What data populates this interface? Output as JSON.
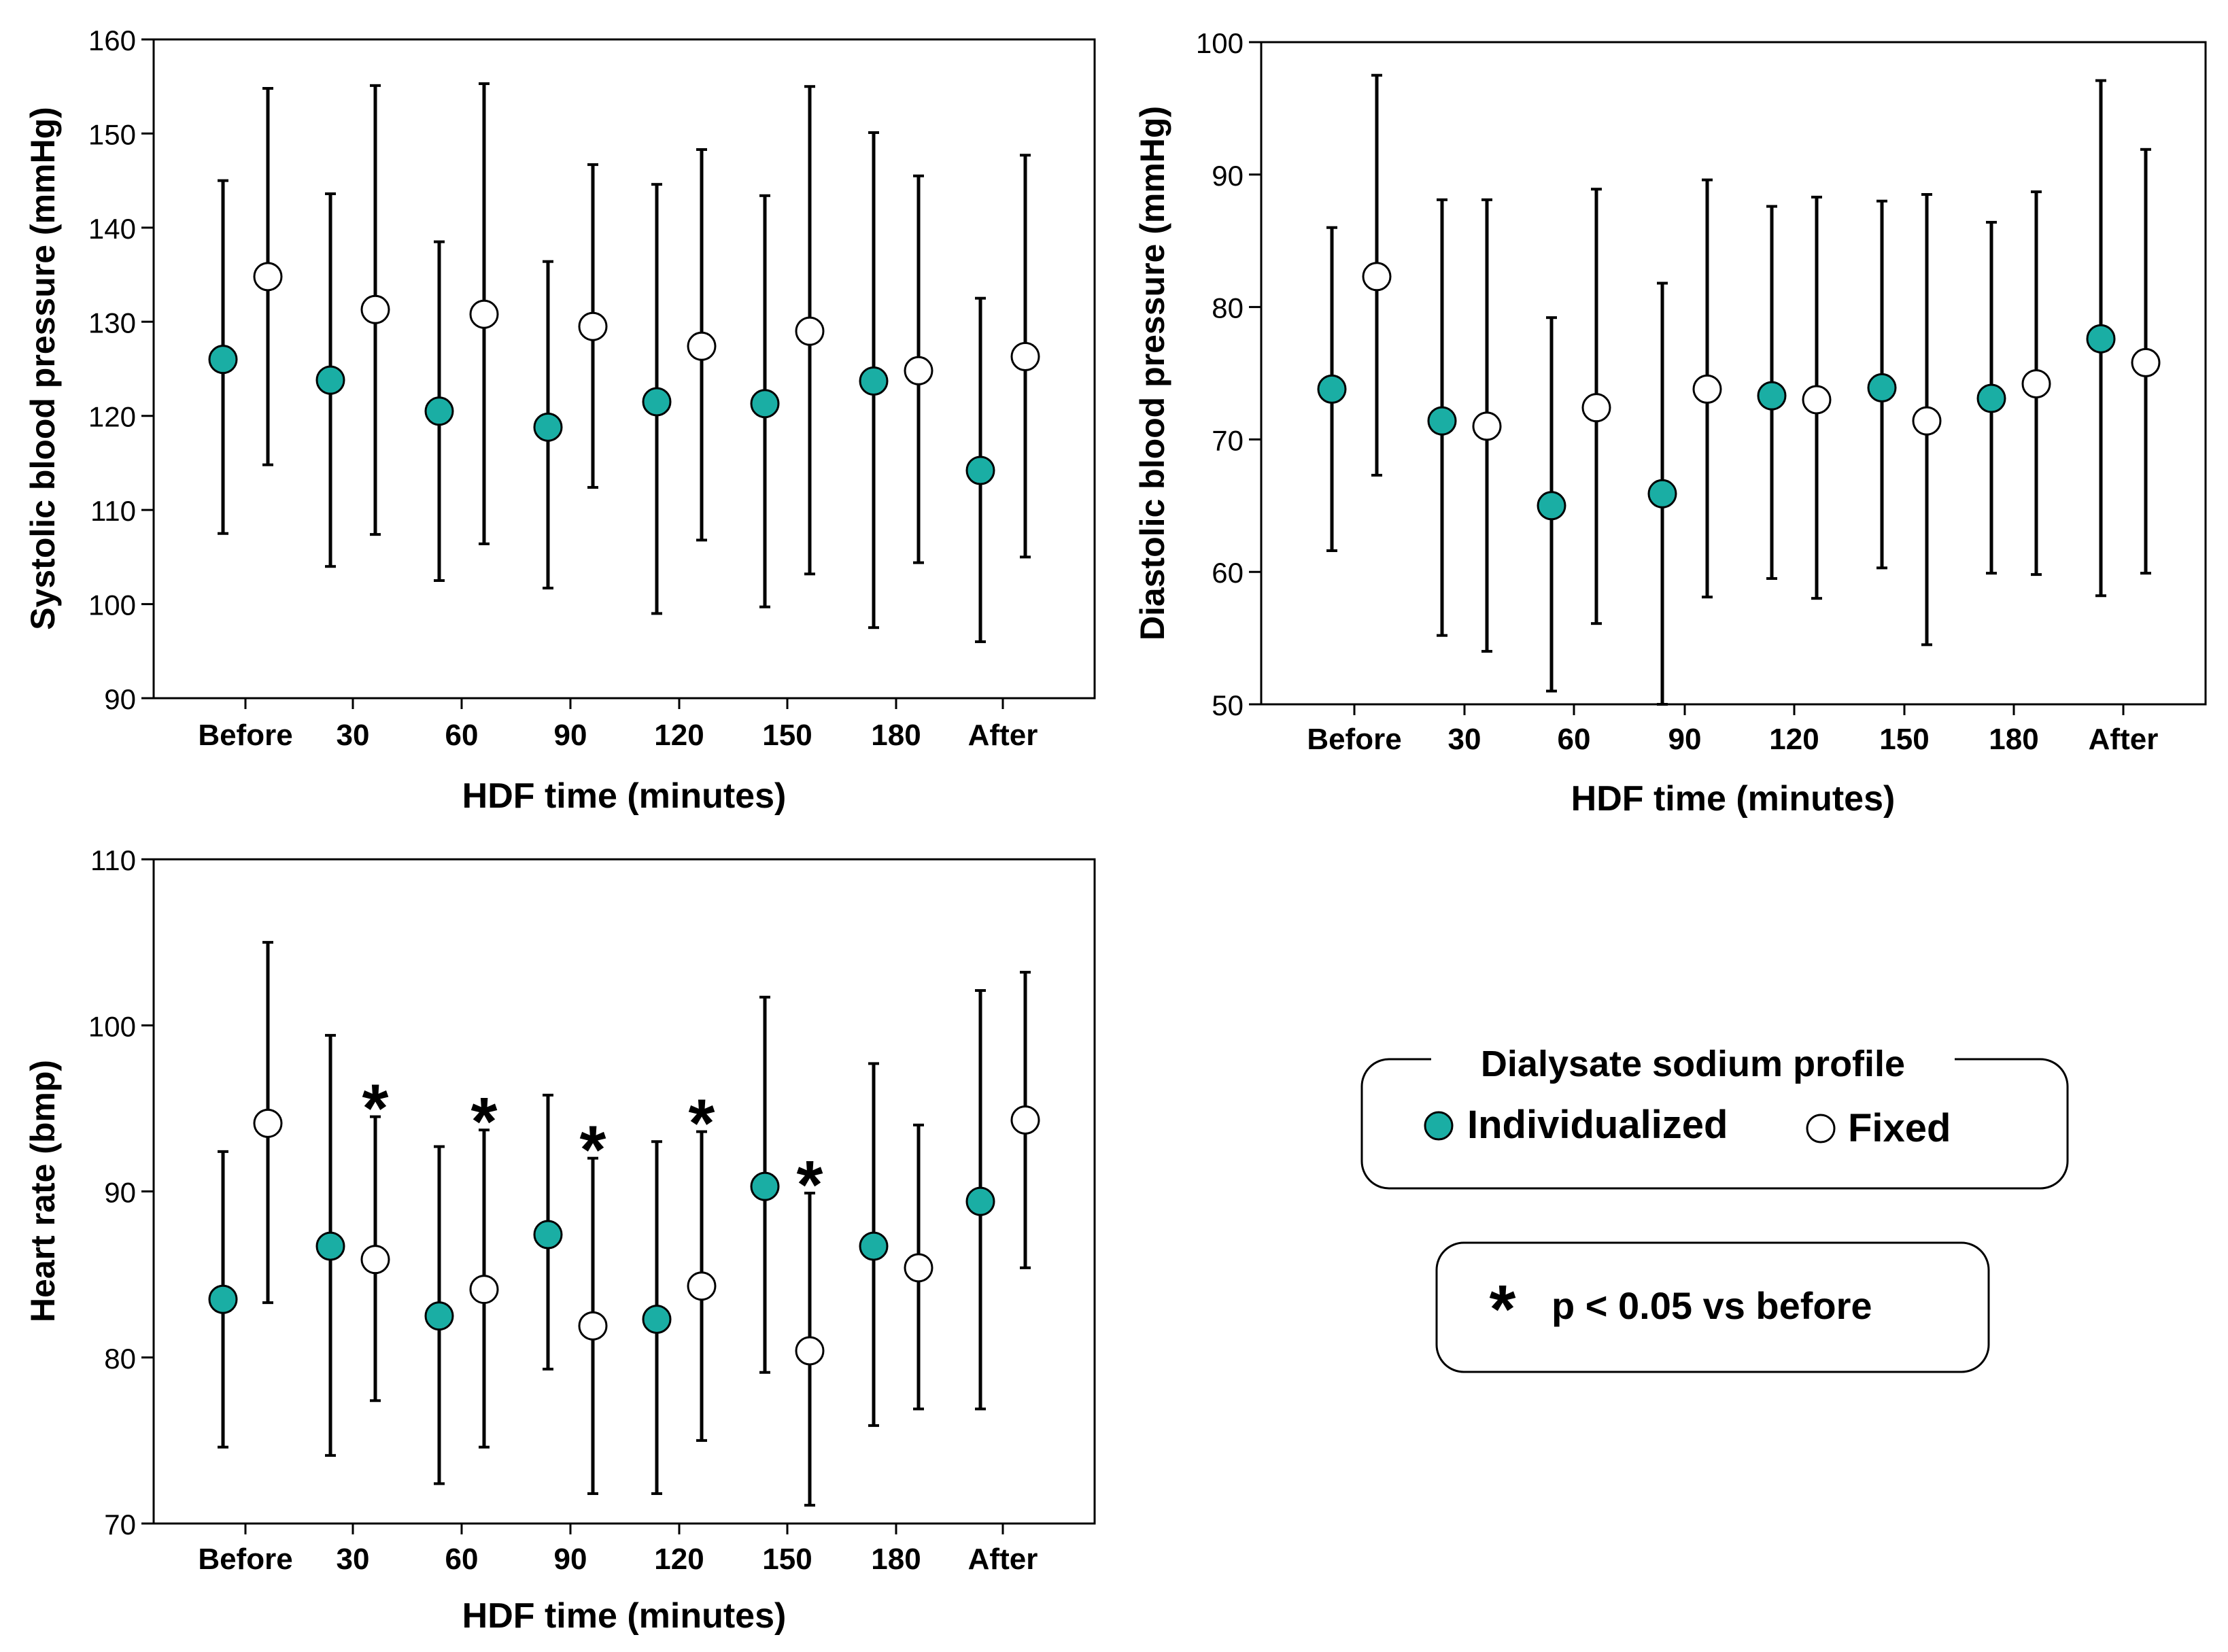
{
  "colors": {
    "individualized": "#1aaea4",
    "fixed": "#ffffff",
    "stroke": "#000000",
    "box_bg": "#ffffff"
  },
  "legend": {
    "title": "Dialysate sodium profile",
    "items": [
      {
        "label": "Individualized",
        "icon": "filled-circle-icon"
      },
      {
        "label": "Fixed",
        "icon": "open-circle-icon"
      }
    ]
  },
  "significance_note": {
    "symbol": "*",
    "text": "p < 0.05 vs before"
  },
  "chart_data": [
    {
      "type": "scatter",
      "name": "systolic",
      "xlabel": "HDF time (minutes)",
      "ylabel": "Systolic blood pressure (mmHg)",
      "categories": [
        "Before",
        "30",
        "60",
        "90",
        "120",
        "150",
        "180",
        "After"
      ],
      "ylim": [
        90,
        160
      ],
      "yticks": [
        "90",
        "100",
        "110",
        "120",
        "130",
        "140",
        "150",
        "160"
      ],
      "series": [
        {
          "name": "Individualized",
          "mean": [
            126,
            123.8,
            120.5,
            118.8,
            121.5,
            121.3,
            123.7,
            114.2
          ],
          "lower": [
            107.5,
            104,
            102.5,
            101.7,
            99,
            99.7,
            97.5,
            96
          ],
          "upper": [
            145,
            143.6,
            138.5,
            136.4,
            144.6,
            143.4,
            150.1,
            132.5
          ]
        },
        {
          "name": "Fixed",
          "mean": [
            134.8,
            131.3,
            130.8,
            129.5,
            127.4,
            129,
            124.8,
            126.3
          ],
          "lower": [
            114.8,
            107.4,
            106.4,
            112.4,
            106.8,
            103.2,
            104.4,
            105
          ],
          "upper": [
            154.8,
            155.1,
            155.3,
            146.7,
            148.3,
            155,
            145.5,
            147.7
          ]
        }
      ],
      "significant": []
    },
    {
      "type": "scatter",
      "name": "diastolic",
      "xlabel": "HDF time (minutes)",
      "ylabel": "Diastolic blood pressure (mmHg)",
      "categories": [
        "Before",
        "30",
        "60",
        "90",
        "120",
        "150",
        "180",
        "After"
      ],
      "ylim": [
        50,
        100
      ],
      "yticks": [
        "50",
        "60",
        "70",
        "80",
        "90",
        "100"
      ],
      "series": [
        {
          "name": "Individualized",
          "mean": [
            73.8,
            71.4,
            65,
            65.9,
            73.3,
            73.9,
            73.1,
            77.6
          ],
          "lower": [
            61.6,
            55.2,
            51,
            50,
            59.5,
            60.3,
            59.9,
            58.2
          ],
          "upper": [
            86,
            88.1,
            79.2,
            81.8,
            87.6,
            88,
            86.4,
            97.1
          ]
        },
        {
          "name": "Fixed",
          "mean": [
            82.3,
            71,
            72.4,
            73.8,
            73,
            71.4,
            74.2,
            75.8
          ],
          "lower": [
            67.3,
            54,
            56.1,
            58.1,
            58,
            54.5,
            59.8,
            59.9
          ],
          "upper": [
            97.5,
            88.1,
            88.9,
            89.6,
            88.3,
            88.5,
            88.7,
            91.9
          ]
        }
      ],
      "significant": []
    },
    {
      "type": "scatter",
      "name": "heart_rate",
      "xlabel": "HDF time (minutes)",
      "ylabel": "Heart rate (bmp)",
      "categories": [
        "Before",
        "30",
        "60",
        "90",
        "120",
        "150",
        "180",
        "After"
      ],
      "ylim": [
        70,
        110
      ],
      "yticks": [
        "70",
        "80",
        "90",
        "100",
        "110"
      ],
      "series": [
        {
          "name": "Individualized",
          "mean": [
            83.5,
            86.7,
            82.5,
            87.4,
            82.3,
            90.3,
            86.7,
            89.4
          ],
          "lower": [
            74.6,
            74.1,
            72.4,
            79.3,
            71.8,
            79.1,
            75.9,
            76.9
          ],
          "upper": [
            92.4,
            99.4,
            92.7,
            95.8,
            93,
            101.7,
            97.7,
            102.1
          ]
        },
        {
          "name": "Fixed",
          "mean": [
            94.1,
            85.9,
            84.1,
            81.9,
            84.3,
            80.4,
            85.4,
            94.3
          ],
          "lower": [
            83.3,
            77.4,
            74.6,
            71.8,
            75,
            71.1,
            76.9,
            85.4
          ],
          "upper": [
            105,
            94.5,
            93.7,
            92,
            93.6,
            89.9,
            94,
            103.2
          ]
        }
      ],
      "significant": [
        "30",
        "60",
        "90",
        "120",
        "150"
      ]
    }
  ]
}
